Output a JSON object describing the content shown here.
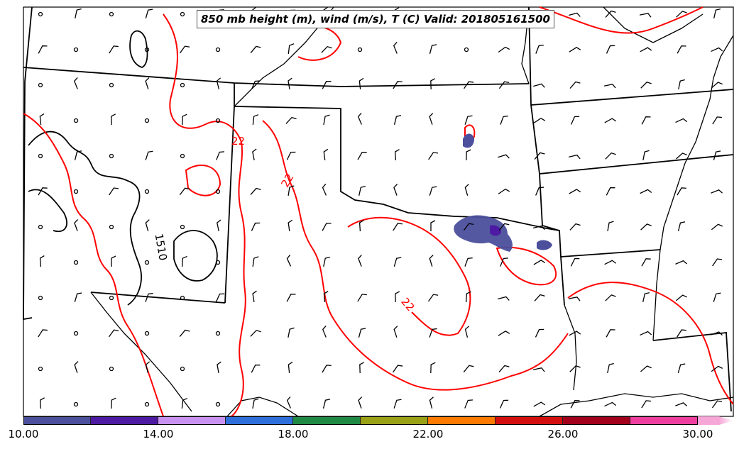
{
  "title": "850 mb height (m), wind (m/s), T (C) Valid: 201805161500",
  "contour_labels": {
    "temp_22_a": "22",
    "temp_22_b": "22",
    "temp_22_c": "22",
    "height_1510": "1510"
  },
  "colorbar": {
    "colors": [
      "#4b4f9c",
      "#4d1aa3",
      "#c892f0",
      "#2e6fdc",
      "#1f8a44",
      "#9aa116",
      "#ff7a00",
      "#d40f0f",
      "#a3001c",
      "#ee3f9e",
      "#f7a6d8"
    ],
    "tick_labels": [
      "10.00",
      "14.00",
      "18.00",
      "22.00",
      "26.00",
      "30.00"
    ]
  },
  "colors": {
    "temperature_contour": "#ff0000",
    "height_contour": "#000000",
    "precip_fill": "#4b4f9c"
  }
}
